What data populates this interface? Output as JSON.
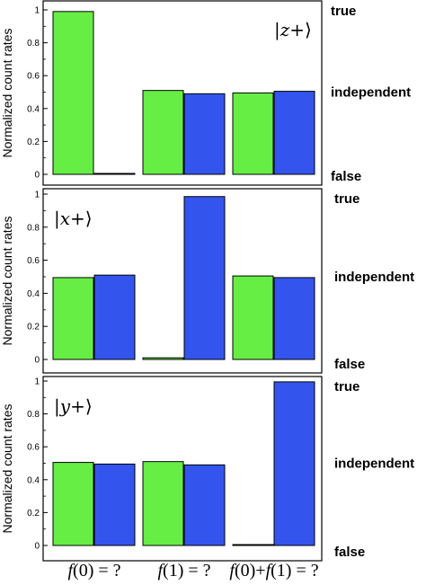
{
  "colors": {
    "green": "#66ee44",
    "blue": "#3355ee",
    "frame": "#000000"
  },
  "chart_data": [
    {
      "type": "bar",
      "state_label": "|z+⟩",
      "state_letter": "z",
      "categories": [
        "f(0) = ?",
        "f(1) = ?",
        "f(0)+f(1) = ?"
      ],
      "ylabel": "Normalized count rates",
      "ylim": [
        0,
        1
      ],
      "yticks": [
        "0",
        "0.2",
        "0.4",
        "0.6",
        "0.8",
        "1"
      ],
      "right_labels": {
        "top": "true",
        "middle": "independent",
        "bottom": "false"
      },
      "series": [
        {
          "color": "green",
          "values": [
            0.99,
            0.51,
            0.495
          ]
        },
        {
          "color": "blue",
          "values": [
            0.005,
            0.49,
            0.505
          ]
        }
      ]
    },
    {
      "type": "bar",
      "state_label": "|x+⟩",
      "state_letter": "x",
      "categories": [
        "f(0) = ?",
        "f(1) = ?",
        "f(0)+f(1) = ?"
      ],
      "ylabel": "Normalized count rates",
      "ylim": [
        0,
        1
      ],
      "yticks": [
        "0",
        "0.2",
        "0.4",
        "0.6",
        "0.8",
        "1"
      ],
      "right_labels": {
        "top": "true",
        "middle": "independent",
        "bottom": "false"
      },
      "series": [
        {
          "color": "green",
          "values": [
            0.495,
            0.01,
            0.505
          ]
        },
        {
          "color": "blue",
          "values": [
            0.51,
            0.985,
            0.495
          ]
        }
      ]
    },
    {
      "type": "bar",
      "state_label": "|y+⟩",
      "state_letter": "y",
      "categories": [
        "f(0) = ?",
        "f(1) = ?",
        "f(0)+f(1) = ?"
      ],
      "ylabel": "Normalized count rates",
      "ylim": [
        0,
        1
      ],
      "yticks": [
        "0",
        "0.2",
        "0.4",
        "0.6",
        "0.8",
        "1"
      ],
      "right_labels": {
        "top": "true",
        "middle": "independent",
        "bottom": "false"
      },
      "series": [
        {
          "color": "green",
          "values": [
            0.505,
            0.51,
            0.005
          ]
        },
        {
          "color": "blue",
          "values": [
            0.495,
            0.49,
            0.995
          ]
        }
      ]
    }
  ],
  "x_axis_labels": [
    {
      "pre": "",
      "italic": "f",
      "post": "(0) = ?"
    },
    {
      "pre": "",
      "italic": "f",
      "post": "(1) = ?"
    },
    {
      "pre": "",
      "italic": "f",
      "post": "(0)+",
      "italic2": "f",
      "post2": "(1) = ?"
    }
  ]
}
